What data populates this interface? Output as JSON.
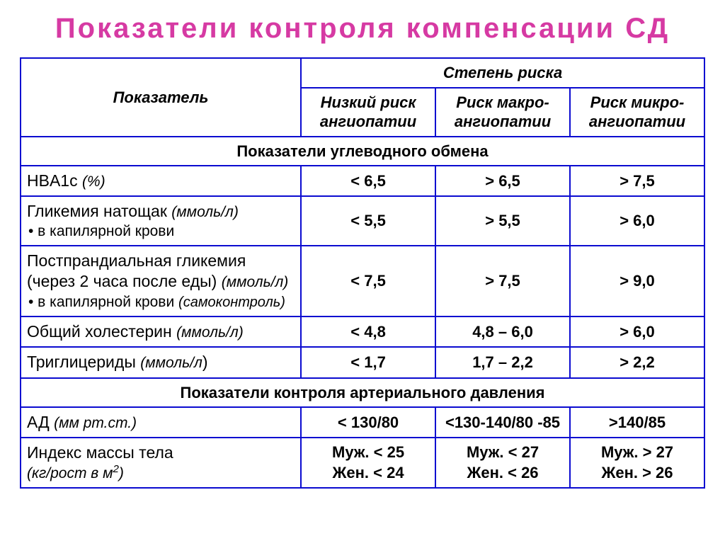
{
  "colors": {
    "title": "#d63aa3",
    "border": "#0b0bd0",
    "text": "#000000",
    "background": "#ffffff"
  },
  "title": "Показатели  контроля  компенсации  СД",
  "header": {
    "indicator": "Показатель",
    "risk_group": "Степень риска",
    "low": {
      "l1": "Низкий риск",
      "l2": "ангиопатии"
    },
    "macro": {
      "l1": "Риск макро-",
      "l2": "ангиопатии"
    },
    "micro": {
      "l1": "Риск микро-",
      "l2": "ангиопатии"
    }
  },
  "sections": {
    "carb": "Показатели углеводного обмена",
    "bp": "Показатели контроля артериального давления"
  },
  "rows": {
    "hba1c": {
      "label_main": "HBA1c ",
      "label_unit": "(%)",
      "low": "< 6,5",
      "macro": "> 6,5",
      "micro": "> 7,5"
    },
    "fasting": {
      "line1_main": "Гликемия натощак ",
      "line1_unit": "(ммоль/л)",
      "line2": "•  в капилярной крови",
      "low": "< 5,5",
      "macro": "> 5,5",
      "micro": "> 6,0"
    },
    "postprandial": {
      "line1": "Постпрандиальная гликемия",
      "line2_main": "(через 2 часа после еды) ",
      "line2_unit": "(ммоль/л)",
      "line3_main": "•  в капилярной крови ",
      "line3_unit": "(самоконтроль)",
      "low": "< 7,5",
      "macro": "> 7,5",
      "micro": "> 9,0"
    },
    "chol": {
      "label_main": "Общий холестерин ",
      "label_unit": "(ммоль/л)",
      "low": "< 4,8",
      "macro": "4,8 – 6,0",
      "micro": "> 6,0"
    },
    "trig": {
      "label_main": "Триглицериды ",
      "label_unit": "(ммоль/л",
      "label_unit_close": ")",
      "low": "< 1,7",
      "macro": "1,7 – 2,2",
      "micro": "> 2,2"
    },
    "bp": {
      "label_main": "АД ",
      "label_unit": "(мм рт.ст.)",
      "low": "< 130/80",
      "macro": "<130-140/80 -85",
      "micro": ">140/85"
    },
    "bmi": {
      "line1": "Индекс массы тела",
      "line2_pre": " (кг/рост в м",
      "line2_sup": "2",
      "line2_post": ")",
      "low_l1": "Муж. < 25",
      "low_l2": "Жен. < 24",
      "macro_l1": "Муж. < 27",
      "macro_l2": "Жен. < 26",
      "micro_l1": "Муж. > 27",
      "micro_l2": "Жен. > 26"
    }
  }
}
